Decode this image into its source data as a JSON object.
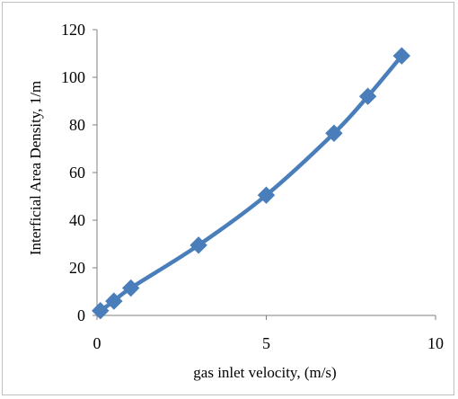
{
  "chart_data": {
    "type": "line",
    "title": "",
    "xlabel": "gas inlet velocity, (m/s)",
    "ylabel": "Interficial Area Density, 1/m",
    "xlim": [
      0,
      10
    ],
    "ylim": [
      0,
      120
    ],
    "x_ticks": [
      "0",
      "5",
      "10"
    ],
    "y_ticks": [
      "0",
      "20",
      "40",
      "60",
      "80",
      "100",
      "120"
    ],
    "grid": false,
    "legend": "none",
    "series": [
      {
        "color": "#4a7ebb",
        "marker": "diamond",
        "x": [
          0.1,
          0.5,
          1,
          3,
          5,
          7,
          8,
          9
        ],
        "y": [
          2,
          6,
          11.5,
          29.5,
          50.5,
          76.5,
          92,
          109
        ]
      }
    ]
  }
}
